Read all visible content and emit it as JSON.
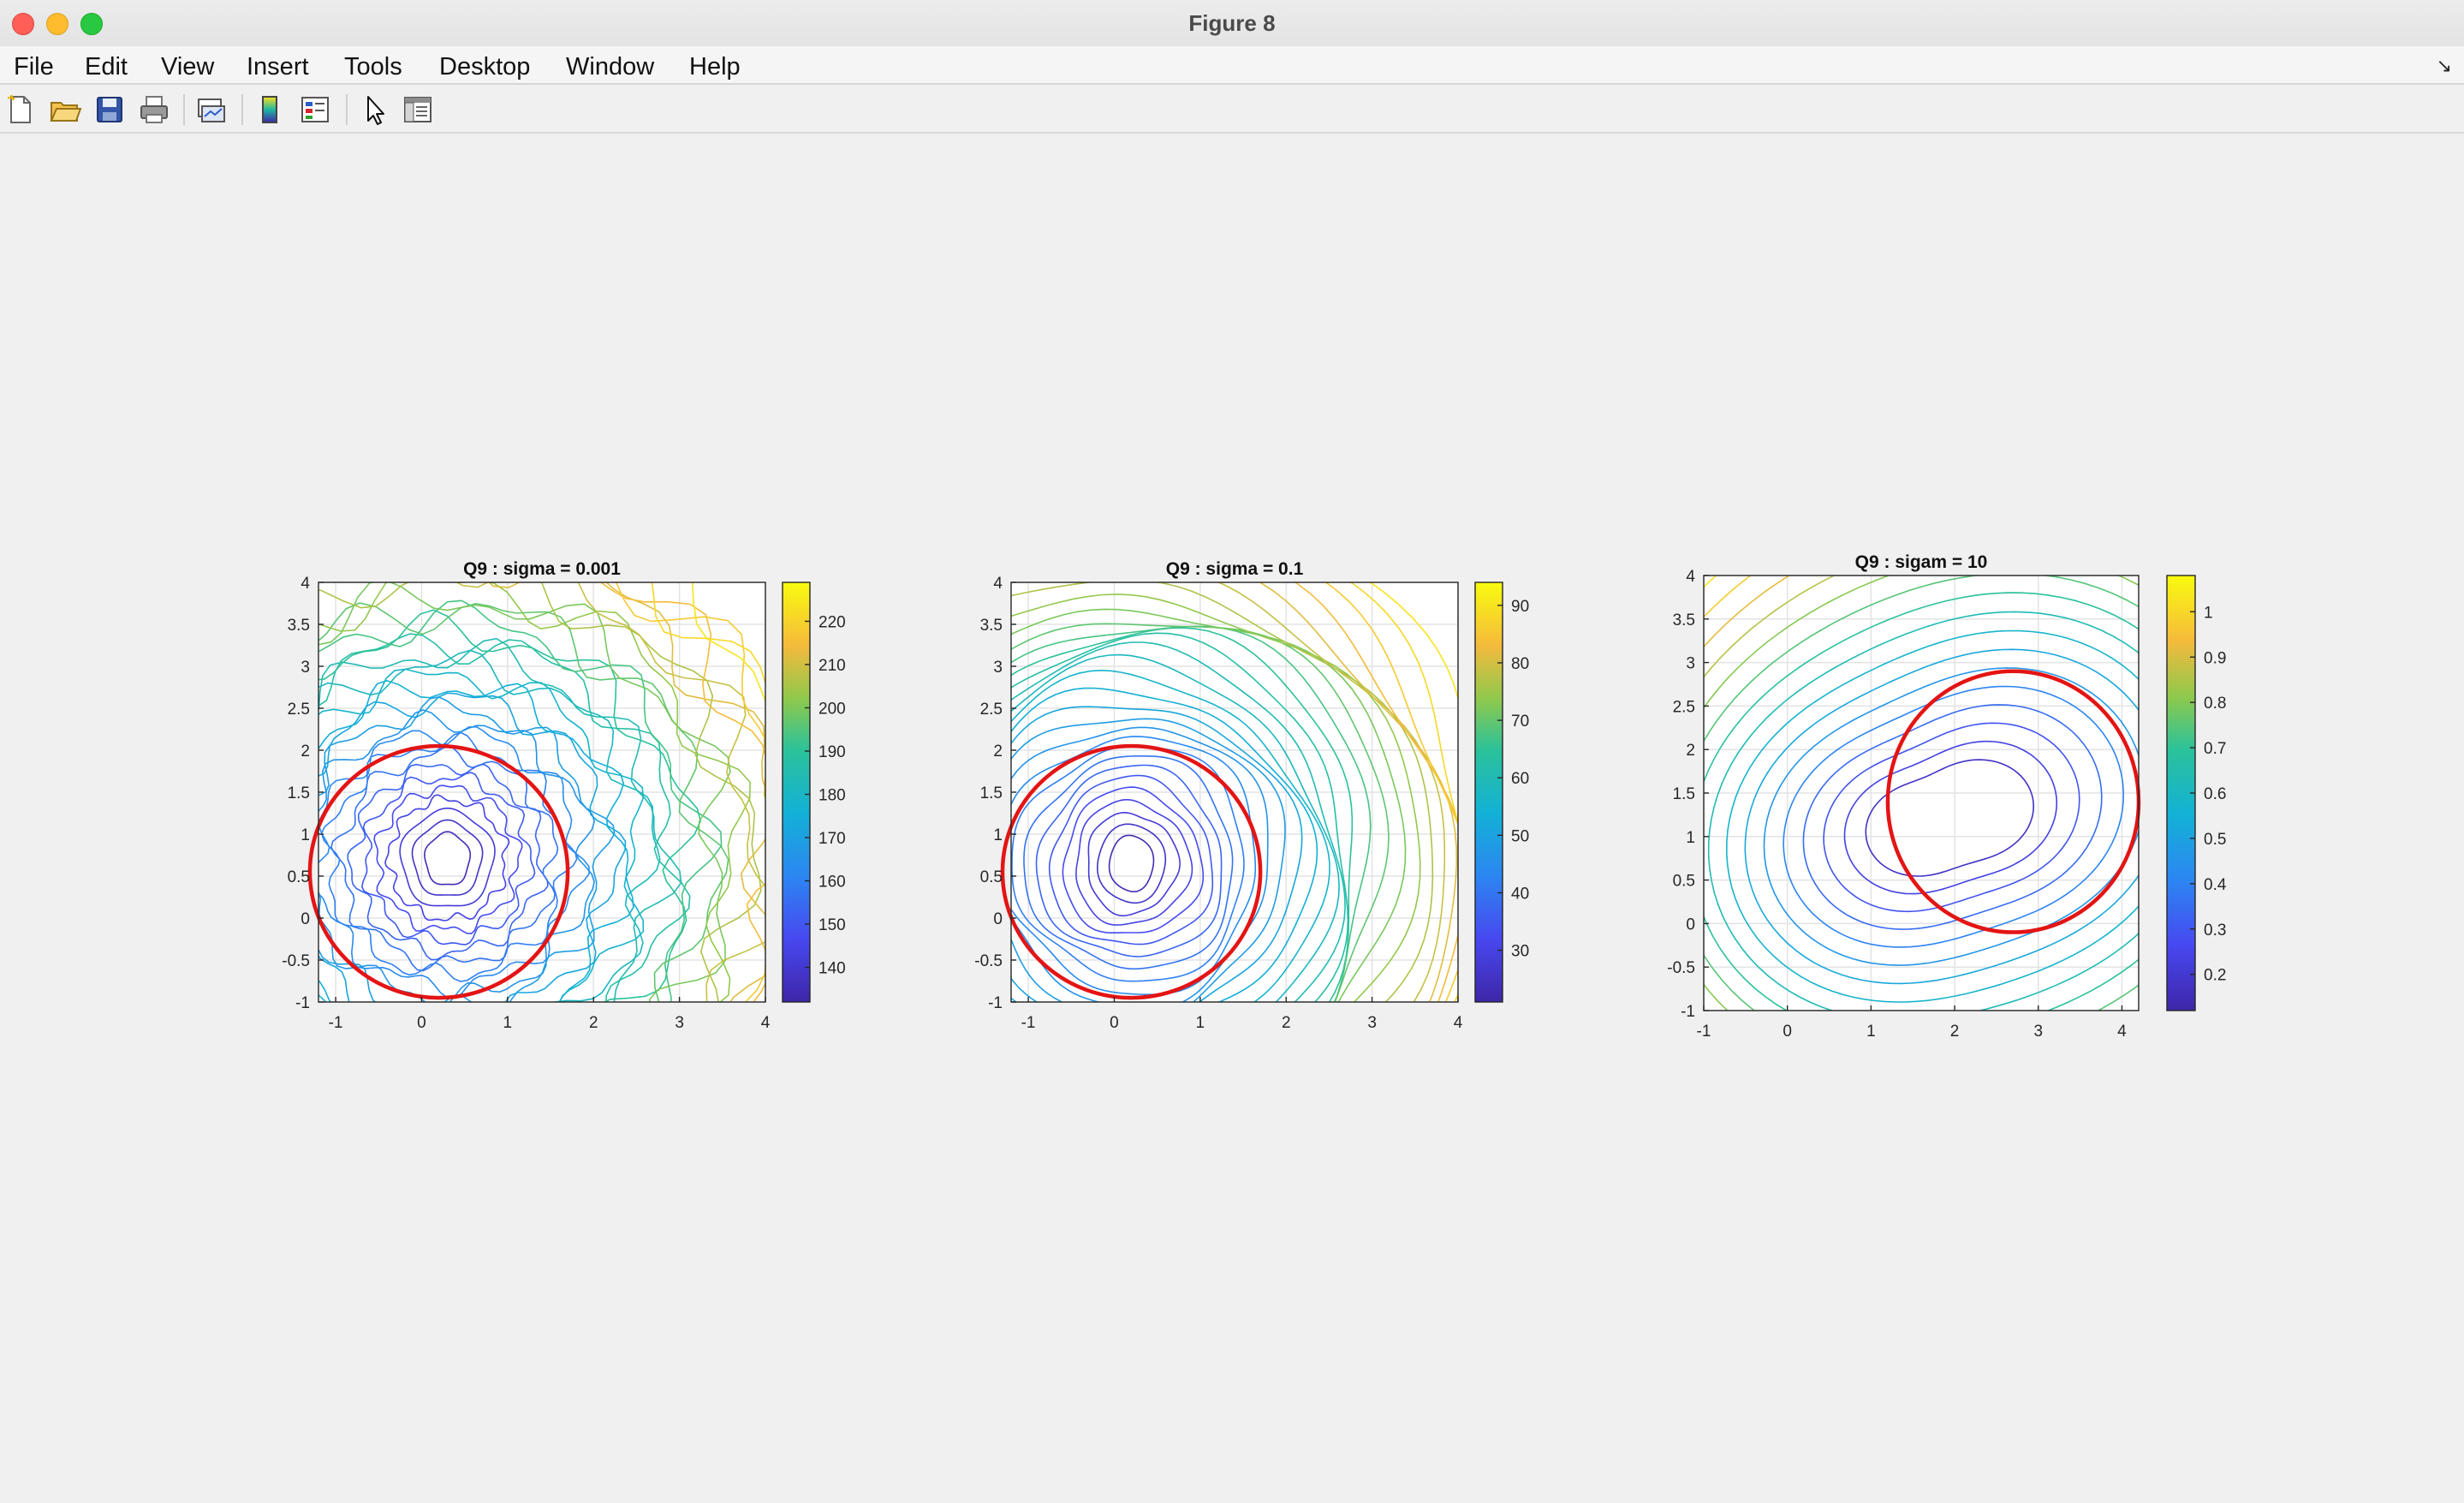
{
  "window": {
    "title": "Figure 8"
  },
  "menu": [
    "File",
    "Edit",
    "View",
    "Insert",
    "Tools",
    "Desktop",
    "Window",
    "Help"
  ],
  "toolbar": {
    "icons": [
      "new-figure-icon",
      "open-file-icon",
      "save-icon",
      "print-icon",
      "link-plot-icon",
      "insert-colorbar-icon",
      "insert-legend-icon",
      "edit-plot-cursor-icon",
      "property-inspector-icon"
    ]
  },
  "colors": {
    "circle": "#e41414",
    "contour_low": "#3e26a8",
    "contour_high": "#f9e11e"
  },
  "chart_data": [
    {
      "type": "contour",
      "title": "Q9 : sigma = 0.001",
      "xlim": [
        -1.2,
        4
      ],
      "ylim": [
        -1,
        4
      ],
      "xticks": [
        -1,
        0,
        1,
        2,
        3,
        4
      ],
      "yticks": [
        -1,
        -0.5,
        0,
        0.5,
        1,
        1.5,
        2,
        2.5,
        3,
        3.5,
        4
      ],
      "grid": true,
      "colorbar": {
        "range": [
          132,
          229
        ],
        "ticks": [
          140,
          150,
          160,
          170,
          180,
          190,
          200,
          210,
          220
        ]
      },
      "contour_center": [
        0.3,
        0.7
      ],
      "circle": {
        "center": [
          0.2,
          0.55
        ],
        "radius": 1.5
      }
    },
    {
      "type": "contour",
      "title": "Q9 : sigma = 0.1",
      "xlim": [
        -1.2,
        4
      ],
      "ylim": [
        -1,
        4
      ],
      "xticks": [
        -1,
        0,
        1,
        2,
        3,
        4
      ],
      "yticks": [
        -1,
        -0.5,
        0,
        0.5,
        1,
        1.5,
        2,
        2.5,
        3,
        3.5,
        4
      ],
      "grid": true,
      "colorbar": {
        "range": [
          21,
          94
        ],
        "ticks": [
          30,
          40,
          50,
          60,
          70,
          80,
          90
        ]
      },
      "contour_center": [
        0.2,
        0.65
      ],
      "circle": {
        "center": [
          0.2,
          0.55
        ],
        "radius": 1.5
      }
    },
    {
      "type": "contour",
      "title": "Q9 : sigam = 10",
      "xlim": [
        -1,
        4.2
      ],
      "ylim": [
        -1,
        4
      ],
      "xticks": [
        -1,
        0,
        1,
        2,
        3,
        4
      ],
      "yticks": [
        -1,
        -0.5,
        0,
        0.5,
        1,
        1.5,
        2,
        2.5,
        3,
        3.5,
        4
      ],
      "grid": true,
      "colorbar": {
        "range": [
          0.12,
          1.08
        ],
        "ticks": [
          0.2,
          0.3,
          0.4,
          0.5,
          0.6,
          0.7,
          0.8,
          0.9,
          1
        ]
      },
      "contour_center": [
        1.9,
        1.2
      ],
      "circle": {
        "center": [
          2.7,
          1.4
        ],
        "radius": 1.5
      }
    }
  ]
}
